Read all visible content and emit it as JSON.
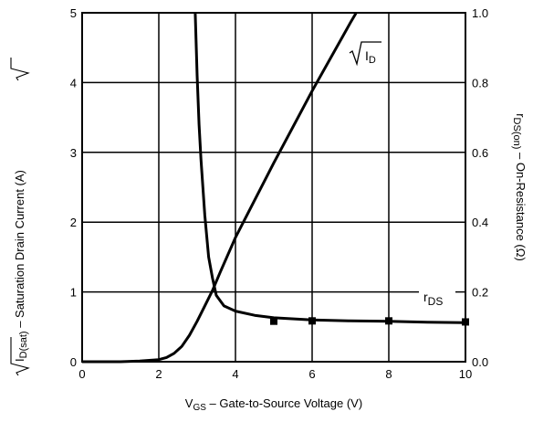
{
  "chart_data": {
    "type": "line",
    "title": "",
    "xlabel": {
      "main": "V",
      "sub": "GS",
      "rest": " – Gate-to-Source Voltage (V)"
    },
    "ylabel_left": {
      "sqrt_pre": "I",
      "sqrt_sub": "D(sat)",
      "rest": " – Saturation Drain Current (A)"
    },
    "ylabel_right": {
      "main": "r",
      "sub": "DS(on)",
      "rest": " – On-Resistance (Ω)"
    },
    "xlim": [
      0,
      10
    ],
    "ylim_left": [
      0,
      5
    ],
    "ylim_right": [
      0,
      1.0
    ],
    "x_ticks": [
      "0",
      "2",
      "4",
      "6",
      "8",
      "10"
    ],
    "y_left_ticks": [
      "0",
      "1",
      "2",
      "3",
      "4",
      "5"
    ],
    "y_right_ticks": [
      "0.0",
      "0.2",
      "0.4",
      "0.6",
      "0.8",
      "1.0"
    ],
    "grid": true,
    "annotations": {
      "sqrt_id": {
        "symbol": "I",
        "sub": "D"
      },
      "rds": {
        "main": "r",
        "sub": "DS"
      }
    },
    "series": [
      {
        "name": "√ID",
        "axis": "left",
        "x": [
          0,
          1.0,
          1.5,
          2.0,
          2.2,
          2.4,
          2.6,
          2.8,
          3.0,
          3.2,
          3.4,
          3.6,
          4.0,
          5.0,
          6.0,
          7.0,
          7.15
        ],
        "y": [
          0.0,
          0.0,
          0.01,
          0.03,
          0.06,
          0.12,
          0.22,
          0.38,
          0.58,
          0.8,
          1.02,
          1.28,
          1.78,
          2.85,
          3.88,
          4.86,
          5.0
        ]
      },
      {
        "name": "rDS",
        "axis": "right",
        "x": [
          2.95,
          3.0,
          3.05,
          3.1,
          3.2,
          3.3,
          3.4,
          3.5,
          3.7,
          4.0,
          4.5,
          5.0,
          6.0,
          7.0,
          8.0,
          9.0,
          10.0
        ],
        "y": [
          1.0,
          0.82,
          0.68,
          0.58,
          0.42,
          0.3,
          0.24,
          0.19,
          0.16,
          0.145,
          0.133,
          0.126,
          0.12,
          0.117,
          0.116,
          0.113,
          0.112
        ]
      },
      {
        "name": "rDS markers",
        "axis": "right",
        "marker": "square",
        "x": [
          5,
          6,
          8,
          10
        ],
        "y": [
          0.116,
          0.117,
          0.117,
          0.114
        ]
      }
    ]
  }
}
